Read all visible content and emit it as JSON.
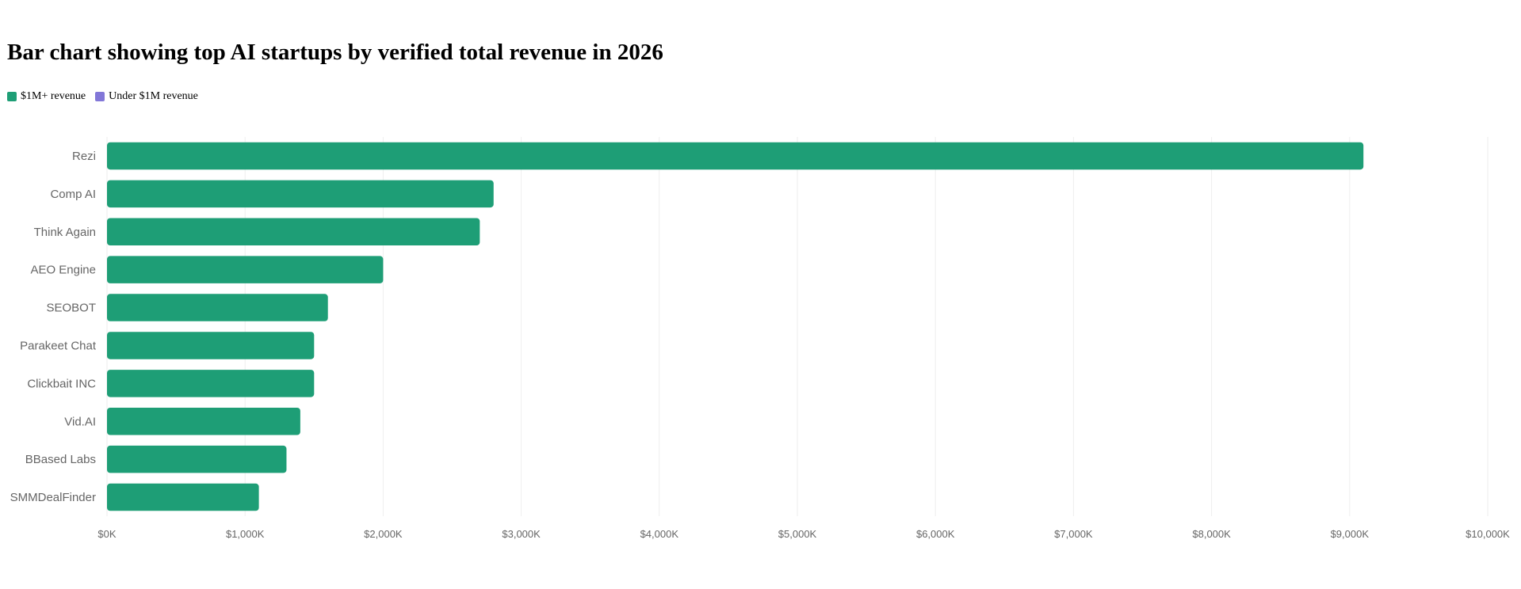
{
  "colors": {
    "over_1m": "#1e9e76",
    "under_1m": "#8277d8",
    "grid": "#eeeeee"
  },
  "chart_data": {
    "type": "bar",
    "orientation": "horizontal",
    "title": "Bar chart showing top AI startups by verified total revenue in 2026",
    "legend": [
      {
        "label": "$1M+ revenue",
        "color": "#1e9e76"
      },
      {
        "label": "Under $1M revenue",
        "color": "#8277d8"
      }
    ],
    "legend_position": "top-left",
    "categories": [
      "Rezi",
      "Comp AI",
      "Think Again",
      "AEO Engine",
      "SEOBOT",
      "Parakeet Chat",
      "Clickbait INC",
      "Vid.AI",
      "BBased Labs",
      "SMMDealFinder"
    ],
    "values": [
      9100,
      2800,
      2700,
      2000,
      1600,
      1500,
      1500,
      1400,
      1300,
      1100
    ],
    "unit": "thousand USD",
    "xlim": [
      0,
      10000
    ],
    "x_ticks": [
      0,
      1000,
      2000,
      3000,
      4000,
      5000,
      6000,
      7000,
      8000,
      9000,
      10000
    ],
    "x_tick_labels": [
      "$0K",
      "$1,000K",
      "$2,000K",
      "$3,000K",
      "$4,000K",
      "$5,000K",
      "$6,000K",
      "$7,000K",
      "$8,000K",
      "$9,000K",
      "$10,000K"
    ],
    "grid": true,
    "xlabel": "",
    "ylabel": ""
  }
}
